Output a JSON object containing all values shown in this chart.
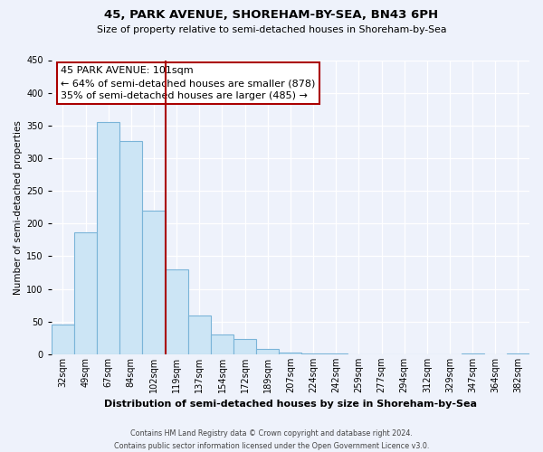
{
  "title": "45, PARK AVENUE, SHOREHAM-BY-SEA, BN43 6PH",
  "subtitle": "Size of property relative to semi-detached houses in Shoreham-by-Sea",
  "xlabel": "Distribution of semi-detached houses by size in Shoreham-by-Sea",
  "ylabel": "Number of semi-detached properties",
  "bar_labels": [
    "32sqm",
    "49sqm",
    "67sqm",
    "84sqm",
    "102sqm",
    "119sqm",
    "137sqm",
    "154sqm",
    "172sqm",
    "189sqm",
    "207sqm",
    "224sqm",
    "242sqm",
    "259sqm",
    "277sqm",
    "294sqm",
    "312sqm",
    "329sqm",
    "347sqm",
    "364sqm",
    "382sqm"
  ],
  "bar_values": [
    46,
    186,
    355,
    326,
    220,
    130,
    60,
    30,
    23,
    8,
    2,
    1,
    1,
    0,
    0,
    0,
    0,
    0,
    1,
    0,
    1
  ],
  "bar_color": "#cce5f5",
  "bar_edge_color": "#7ab4d8",
  "highlight_bar_idx": 4,
  "highlight_line_color": "#aa0000",
  "annotation_title": "45 PARK AVENUE: 101sqm",
  "annotation_line1": "← 64% of semi-detached houses are smaller (878)",
  "annotation_line2": "35% of semi-detached houses are larger (485) →",
  "annotation_box_color": "#ffffff",
  "annotation_box_edge": "#aa0000",
  "ylim": [
    0,
    450
  ],
  "yticks": [
    0,
    50,
    100,
    150,
    200,
    250,
    300,
    350,
    400,
    450
  ],
  "footer_line1": "Contains HM Land Registry data © Crown copyright and database right 2024.",
  "footer_line2": "Contains public sector information licensed under the Open Government Licence v3.0.",
  "background_color": "#eef2fb",
  "grid_color": "#ffffff",
  "title_fontsize": 9.5,
  "subtitle_fontsize": 7.8,
  "xlabel_fontsize": 8.0,
  "ylabel_fontsize": 7.5,
  "tick_fontsize": 7.0,
  "annotation_fontsize": 8.0,
  "footer_fontsize": 5.8
}
